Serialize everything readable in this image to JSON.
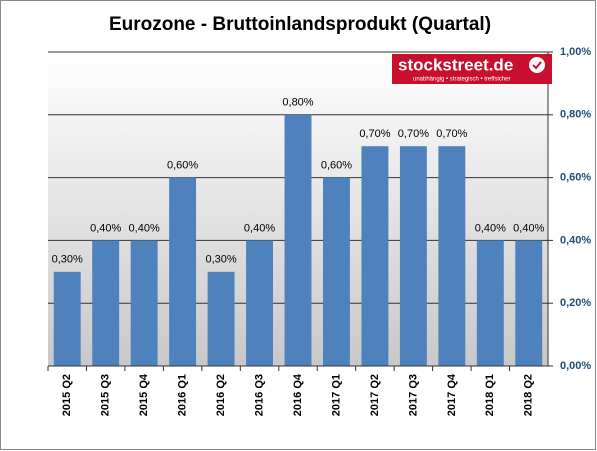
{
  "chart_data": {
    "type": "bar",
    "title": "Eurozone - Bruttoinlandsprodukt (Quartal)",
    "categories": [
      "2015 Q2",
      "2015 Q3",
      "2015 Q4",
      "2016 Q1",
      "2016 Q2",
      "2016 Q3",
      "2016 Q4",
      "2017 Q1",
      "2017 Q2",
      "2017 Q3",
      "2017 Q4",
      "2018 Q1",
      "2018 Q2"
    ],
    "values": [
      0.3,
      0.4,
      0.4,
      0.6,
      0.3,
      0.4,
      0.8,
      0.6,
      0.7,
      0.7,
      0.7,
      0.4,
      0.4
    ],
    "value_labels": [
      "0,30%",
      "0,40%",
      "0,40%",
      "0,60%",
      "0,30%",
      "0,40%",
      "0,80%",
      "0,60%",
      "0,70%",
      "0,70%",
      "0,70%",
      "0,40%",
      "0,40%"
    ],
    "color": "#4f81bd",
    "ylim": [
      0,
      1
    ],
    "yticks": [
      {
        "value": 0,
        "label": "0,00%"
      },
      {
        "value": 0.2,
        "label": "0,20%"
      },
      {
        "value": 0.4,
        "label": "0,40%"
      },
      {
        "value": 0.6,
        "label": "0,60%"
      },
      {
        "value": 0.8,
        "label": "0,80%"
      },
      {
        "value": 1,
        "label": "1,00%"
      }
    ],
    "y_axis_side": "right",
    "grid": true
  },
  "logo": {
    "name": "stockstreet.de",
    "tagline": "unabhängig • strategisch • treffsicher"
  }
}
